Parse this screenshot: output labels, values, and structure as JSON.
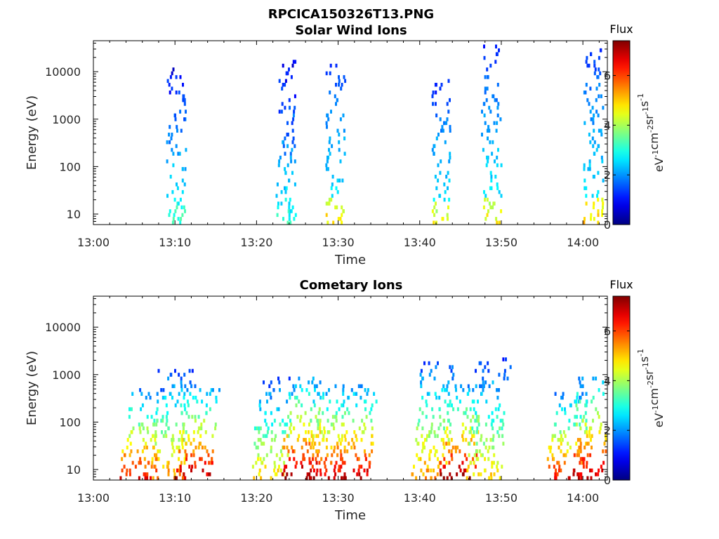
{
  "figure_title": "RPCICA150326T13.PNG",
  "chart_data": [
    {
      "type": "heatmap",
      "title": "Solar Wind Ions",
      "xlabel": "Time",
      "ylabel": "Energy (eV)",
      "x_ticks": [
        "13:00",
        "13:10",
        "13:20",
        "13:30",
        "13:40",
        "13:50",
        "14:00"
      ],
      "x_range_minutes_after_13_00": [
        0,
        63
      ],
      "y_scale": "log",
      "y_ticks": [
        10,
        100,
        1000,
        10000
      ],
      "y_tick_labels": [
        "10",
        "100",
        "1000",
        "10000"
      ],
      "y_range": [
        6,
        45000
      ],
      "colorbar": {
        "label_top": "Flux",
        "units": "eV-1cm-2sr-1s-1",
        "range": [
          0,
          7.4
        ],
        "ticks": [
          0,
          2,
          4,
          6
        ],
        "tick_labels": [
          "0",
          "2",
          "4",
          "6"
        ],
        "colormap": "jet"
      },
      "bursts": [
        {
          "t": 10.1,
          "e_min": 6,
          "e_max": 12000,
          "peak": 3.2
        },
        {
          "t": 23.5,
          "e_min": 6,
          "e_max": 16000,
          "peak": 3.0
        },
        {
          "t": 29.6,
          "e_min": 6,
          "e_max": 16000,
          "peak": 4.8
        },
        {
          "t": 42.6,
          "e_min": 6,
          "e_max": 6000,
          "peak": 4.5
        },
        {
          "t": 48.7,
          "e_min": 6,
          "e_max": 35000,
          "peak": 4.6
        },
        {
          "t": 61.2,
          "e_min": 6,
          "e_max": 28000,
          "peak": 5.0
        }
      ]
    },
    {
      "type": "heatmap",
      "title": "Cometary Ions",
      "xlabel": "Time",
      "ylabel": "Energy (eV)",
      "x_ticks": [
        "13:00",
        "13:10",
        "13:20",
        "13:30",
        "13:40",
        "13:50",
        "14:00"
      ],
      "x_range_minutes_after_13_00": [
        0,
        63
      ],
      "y_scale": "log",
      "y_ticks": [
        10,
        100,
        1000,
        10000
      ],
      "y_tick_labels": [
        "10",
        "100",
        "1000",
        "10000"
      ],
      "y_range": [
        6,
        45000
      ],
      "colorbar": {
        "label_top": "Flux",
        "units": "eV-1cm-2sr-1s-1",
        "range": [
          0,
          7.4
        ],
        "ticks": [
          0,
          2,
          4,
          6
        ],
        "tick_labels": [
          "0",
          "2",
          "4",
          "6"
        ],
        "colormap": "jet"
      },
      "bursts": [
        {
          "t": 6.5,
          "e_min": 6,
          "e_max": 500,
          "peak": 6.5
        },
        {
          "t": 10.0,
          "e_min": 6,
          "e_max": 1200,
          "peak": 5.5
        },
        {
          "t": 13.3,
          "e_min": 6,
          "e_max": 600,
          "peak": 7.0
        },
        {
          "t": 22.5,
          "e_min": 6,
          "e_max": 900,
          "peak": 5.0
        },
        {
          "t": 26.2,
          "e_min": 6,
          "e_max": 900,
          "peak": 7.2
        },
        {
          "t": 29.2,
          "e_min": 6,
          "e_max": 600,
          "peak": 6.8
        },
        {
          "t": 32.7,
          "e_min": 6,
          "e_max": 600,
          "peak": 7.0
        },
        {
          "t": 42.3,
          "e_min": 6,
          "e_max": 1800,
          "peak": 5.5
        },
        {
          "t": 45.6,
          "e_min": 6,
          "e_max": 600,
          "peak": 7.2
        },
        {
          "t": 48.9,
          "e_min": 6,
          "e_max": 2000,
          "peak": 5.0
        },
        {
          "t": 58.7,
          "e_min": 6,
          "e_max": 400,
          "peak": 6.5
        },
        {
          "t": 61.5,
          "e_min": 6,
          "e_max": 900,
          "peak": 7.0
        }
      ]
    }
  ]
}
